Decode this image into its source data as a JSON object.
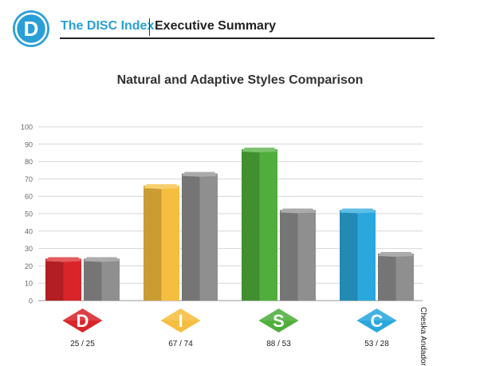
{
  "header": {
    "logo_letter": "D",
    "brand": "The DISC Index",
    "section": "Executive Summary",
    "colors": {
      "accent": "#2a9fd6"
    }
  },
  "chart_data": {
    "type": "bar",
    "title": "Natural and Adaptive Styles Comparison",
    "ylim": [
      0,
      100
    ],
    "yticks": [
      0,
      10,
      20,
      30,
      40,
      50,
      60,
      70,
      80,
      90,
      100
    ],
    "grid": true,
    "categories": [
      "D",
      "I",
      "S",
      "C"
    ],
    "series": [
      {
        "values": [
          25,
          67,
          88,
          53
        ]
      },
      {
        "values": [
          25,
          74,
          53,
          28
        ]
      }
    ],
    "category_labels": [
      "25 / 25",
      "67 / 74",
      "88 / 53",
      "53 / 28"
    ],
    "colors": {
      "natural": [
        "#d9252a",
        "#f6be3f",
        "#4fae3c",
        "#2aa8dd"
      ],
      "adaptive": "#8f8f8f"
    }
  },
  "credit": "Cheska Andador"
}
